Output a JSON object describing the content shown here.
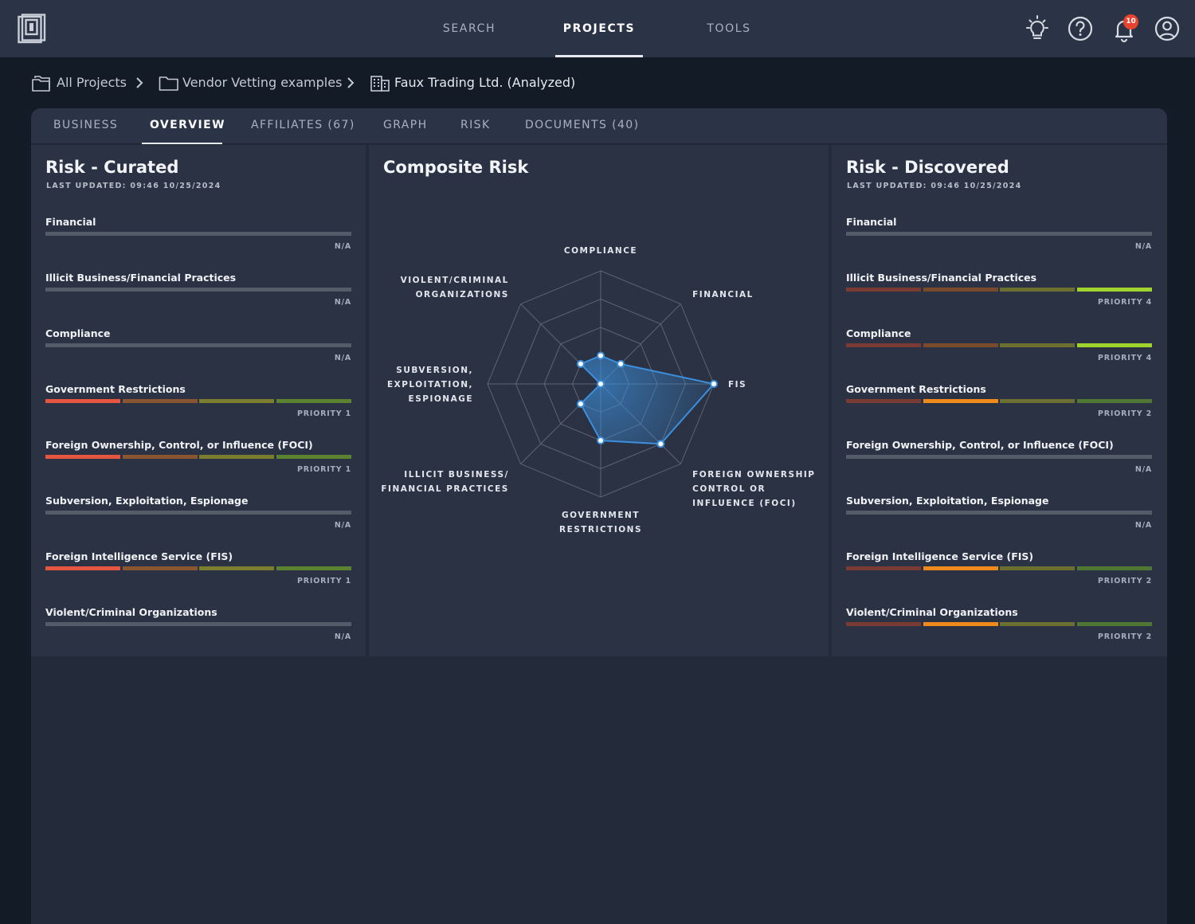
{
  "nav": {
    "search": "SEARCH",
    "projects": "PROJECTS",
    "tools": "TOOLS",
    "notification_count": "10",
    "icons": [
      "lightbulb-icon",
      "help-icon",
      "bell-icon",
      "user-icon"
    ]
  },
  "breadcrumb": {
    "all_projects": "All Projects",
    "folder": "Vendor Vetting examples",
    "current": "Faux Trading Ltd. (Analyzed)"
  },
  "tabs": [
    {
      "label": "BUSINESS"
    },
    {
      "label": "OVERVIEW"
    },
    {
      "label": "AFFILIATES (67)"
    },
    {
      "label": "GRAPH"
    },
    {
      "label": "RISK"
    },
    {
      "label": "DOCUMENTS (40)"
    }
  ],
  "colors": {
    "red": "#e5553f",
    "brown": "#8a5632",
    "olive": "#7b7e2e",
    "green": "#5b822e",
    "dim_red": "#7b3b35",
    "dim_brown": "#7a4a2c",
    "dim_olive": "#6b7030",
    "dim_green": "#4f7632",
    "orange": "#f08a1d",
    "lime": "#9fd32d",
    "na_gray": "#545b69",
    "radar_blue": "#3c8fdc"
  },
  "curated": {
    "title": "Risk - Curated",
    "updated": "LAST UPDATED: 09:46 10/25/2024",
    "items": [
      {
        "label": "Financial",
        "status": "N/A",
        "level": 0
      },
      {
        "label": "Illicit Business/Financial Practices",
        "status": "N/A",
        "level": 0
      },
      {
        "label": "Compliance",
        "status": "N/A",
        "level": 0
      },
      {
        "label": "Government Restrictions",
        "status": "PRIORITY 1",
        "level": 1
      },
      {
        "label": "Foreign Ownership, Control, or Influence (FOCI)",
        "status": "PRIORITY 1",
        "level": 1
      },
      {
        "label": "Subversion, Exploitation, Espionage",
        "status": "N/A",
        "level": 0
      },
      {
        "label": "Foreign Intelligence Service (FIS)",
        "status": "PRIORITY 1",
        "level": 1
      },
      {
        "label": "Violent/Criminal Organizations",
        "status": "N/A",
        "level": 0
      }
    ]
  },
  "discovered": {
    "title": "Risk - Discovered",
    "updated": "LAST UPDATED: 09:46 10/25/2024",
    "items": [
      {
        "label": "Financial",
        "status": "N/A",
        "level": 0
      },
      {
        "label": "Illicit Business/Financial Practices",
        "status": "PRIORITY 4",
        "level": 4
      },
      {
        "label": "Compliance",
        "status": "PRIORITY 4",
        "level": 4
      },
      {
        "label": "Government Restrictions",
        "status": "PRIORITY 2",
        "level": 2
      },
      {
        "label": "Foreign Ownership, Control, or Influence (FOCI)",
        "status": "N/A",
        "level": 0
      },
      {
        "label": "Subversion, Exploitation, Espionage",
        "status": "N/A",
        "level": 0
      },
      {
        "label": "Foreign Intelligence Service (FIS)",
        "status": "PRIORITY 2",
        "level": 2
      },
      {
        "label": "Violent/Criminal Organizations",
        "status": "PRIORITY 2",
        "level": 2
      }
    ]
  },
  "composite": {
    "title": "Composite Risk",
    "chart_data": {
      "type": "radar",
      "rings": 4,
      "max": 1.0,
      "axes": [
        {
          "label": [
            "COMPLIANCE"
          ],
          "value": 0.25
        },
        {
          "label": [
            "FINANCIAL"
          ],
          "value": 0.25
        },
        {
          "label": [
            "FIS"
          ],
          "value": 1.0
        },
        {
          "label": [
            "FOREIGN OWNERSHIP",
            "CONTROL OR",
            "INFLUENCE (FOCI)"
          ],
          "value": 0.75
        },
        {
          "label": [
            "GOVERNMENT",
            "RESTRICTIONS"
          ],
          "value": 0.5
        },
        {
          "label": [
            "ILLICIT BUSINESS/",
            "FINANCIAL PRACTICES"
          ],
          "value": 0.25
        },
        {
          "label": [
            "SUBVERSION,",
            "EXPLOITATION,",
            "ESPIONAGE"
          ],
          "value": 0.0
        },
        {
          "label": [
            "VIOLENT/CRIMINAL",
            "ORGANIZATIONS"
          ],
          "value": 0.25
        }
      ]
    }
  }
}
